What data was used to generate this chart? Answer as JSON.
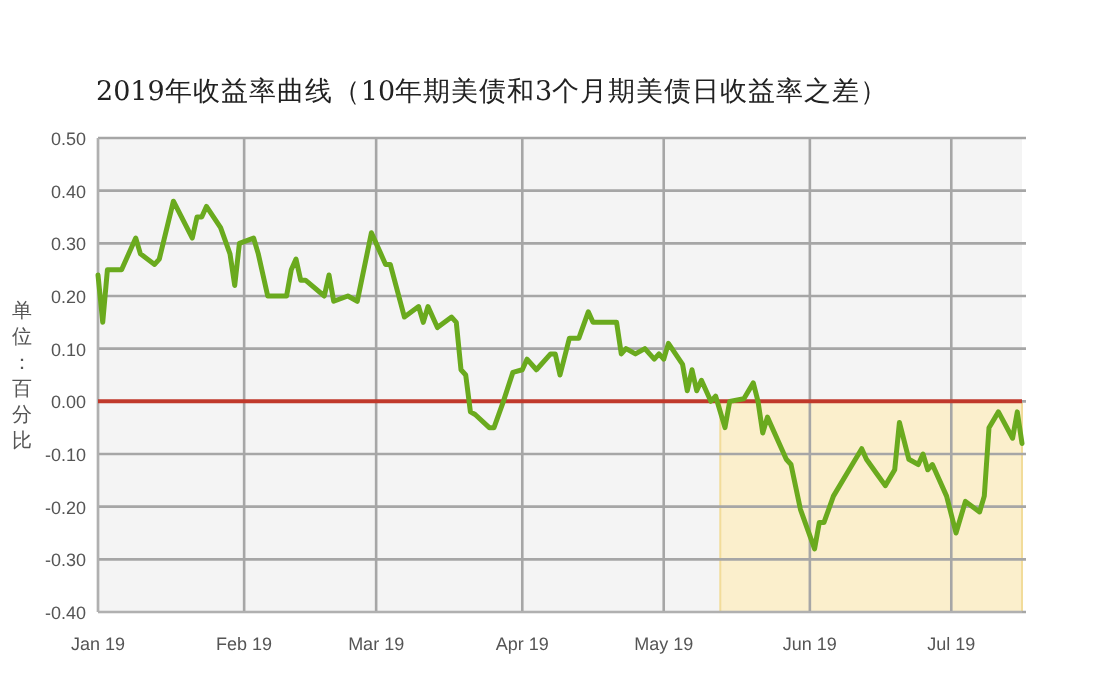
{
  "chart_data": {
    "type": "line",
    "title": "2019年收益率曲线（10年期美债和3个月期美债日收益率之差）",
    "ylabel": "单位：百分比",
    "x": [
      "2019-01-01",
      "2019-01-02",
      "2019-01-03",
      "2019-01-06",
      "2019-01-09",
      "2019-01-10",
      "2019-01-13",
      "2019-01-14",
      "2019-01-17",
      "2019-01-21",
      "2019-01-22",
      "2019-01-23",
      "2019-01-24",
      "2019-01-27",
      "2019-01-29",
      "2019-01-30",
      "2019-01-31",
      "2019-02-03",
      "2019-02-04",
      "2019-02-06",
      "2019-02-10",
      "2019-02-11",
      "2019-02-12",
      "2019-02-13",
      "2019-02-14",
      "2019-02-18",
      "2019-02-19",
      "2019-02-20",
      "2019-02-23",
      "2019-02-25",
      "2019-02-28",
      "2019-03-02",
      "2019-03-03",
      "2019-03-04",
      "2019-03-07",
      "2019-03-10",
      "2019-03-11",
      "2019-03-12",
      "2019-03-14",
      "2019-03-17",
      "2019-03-18",
      "2019-03-19",
      "2019-03-20",
      "2019-03-21",
      "2019-03-22",
      "2019-03-25",
      "2019-03-26",
      "2019-03-28",
      "2019-03-30",
      "2019-04-01",
      "2019-04-02",
      "2019-04-04",
      "2019-04-07",
      "2019-04-08",
      "2019-04-09",
      "2019-04-11",
      "2019-04-13",
      "2019-04-15",
      "2019-04-16",
      "2019-04-21",
      "2019-04-22",
      "2019-04-23",
      "2019-04-25",
      "2019-04-27",
      "2019-04-29",
      "2019-04-30",
      "2019-05-01",
      "2019-05-02",
      "2019-05-05",
      "2019-05-06",
      "2019-05-07",
      "2019-05-08",
      "2019-05-09",
      "2019-05-11",
      "2019-05-12",
      "2019-05-14",
      "2019-05-15",
      "2019-05-18",
      "2019-05-20",
      "2019-05-21",
      "2019-05-22",
      "2019-05-23",
      "2019-05-27",
      "2019-05-28",
      "2019-05-30",
      "2019-06-02",
      "2019-06-03",
      "2019-06-04",
      "2019-06-06",
      "2019-06-10",
      "2019-06-12",
      "2019-06-13",
      "2019-06-15",
      "2019-06-17",
      "2019-06-19",
      "2019-06-20",
      "2019-06-22",
      "2019-06-24",
      "2019-06-25",
      "2019-06-26",
      "2019-06-27",
      "2019-06-30",
      "2019-07-02",
      "2019-07-04",
      "2019-07-07",
      "2019-07-08",
      "2019-07-09",
      "2019-07-11",
      "2019-07-14",
      "2019-07-15",
      "2019-07-16"
    ],
    "series": [
      {
        "color": "#6aaa1e",
        "values": [
          0.24,
          0.15,
          0.25,
          0.25,
          0.31,
          0.28,
          0.26,
          0.27,
          0.38,
          0.31,
          0.35,
          0.35,
          0.37,
          0.33,
          0.28,
          0.22,
          0.3,
          0.31,
          0.28,
          0.2,
          0.2,
          0.25,
          0.27,
          0.23,
          0.23,
          0.2,
          0.24,
          0.19,
          0.2,
          0.19,
          0.32,
          0.28,
          0.26,
          0.26,
          0.16,
          0.18,
          0.15,
          0.18,
          0.14,
          0.16,
          0.15,
          0.06,
          0.05,
          -0.02,
          -0.025,
          -0.05,
          -0.05,
          0.0,
          0.055,
          0.06,
          0.08,
          0.06,
          0.09,
          0.09,
          0.05,
          0.12,
          0.12,
          0.17,
          0.15,
          0.15,
          0.09,
          0.1,
          0.09,
          0.1,
          0.08,
          0.09,
          0.08,
          0.11,
          0.07,
          0.02,
          0.06,
          0.02,
          0.04,
          0.0,
          0.01,
          -0.05,
          0.0,
          0.005,
          0.035,
          0.0,
          -0.06,
          -0.03,
          -0.11,
          -0.12,
          -0.205,
          -0.28,
          -0.23,
          -0.23,
          -0.18,
          -0.12,
          -0.09,
          -0.11,
          -0.135,
          -0.16,
          -0.13,
          -0.04,
          -0.11,
          -0.12,
          -0.1,
          -0.13,
          -0.12,
          -0.18,
          -0.25,
          -0.19,
          -0.21,
          -0.18,
          -0.05,
          -0.02,
          -0.07,
          -0.02,
          -0.08
        ]
      }
    ],
    "xlim": [
      "2019-01-01",
      "2019-07-16"
    ],
    "xticks": [
      {
        "value": "2019-01-01",
        "label": "Jan 19"
      },
      {
        "value": "2019-02-01",
        "label": "Feb 19"
      },
      {
        "value": "2019-03-01",
        "label": "Mar 19"
      },
      {
        "value": "2019-04-01",
        "label": "Apr 19"
      },
      {
        "value": "2019-05-01",
        "label": "May 19"
      },
      {
        "value": "2019-06-01",
        "label": "Jun 19"
      },
      {
        "value": "2019-07-01",
        "label": "Jul 19"
      }
    ],
    "ylim": [
      -0.4,
      0.5
    ],
    "yticks": [
      {
        "value": 0.5,
        "label": "0.50"
      },
      {
        "value": 0.4,
        "label": "0.40"
      },
      {
        "value": 0.3,
        "label": "0.30"
      },
      {
        "value": 0.2,
        "label": "0.20"
      },
      {
        "value": 0.1,
        "label": "0.10"
      },
      {
        "value": 0,
        "label": "0.00"
      },
      {
        "value": -0.1,
        "label": "-0.10"
      },
      {
        "value": -0.2,
        "label": "-0.20"
      },
      {
        "value": -0.3,
        "label": "-0.30"
      },
      {
        "value": -0.4,
        "label": "-0.40"
      }
    ],
    "grid": true,
    "ref_lines": [
      {
        "axis": "y",
        "value": 0,
        "color": "#c0392b"
      }
    ],
    "bands": [
      {
        "axis": "x",
        "from": "2019-05-13",
        "to": "2019-07-16",
        "color": "#fbefcc"
      }
    ]
  }
}
